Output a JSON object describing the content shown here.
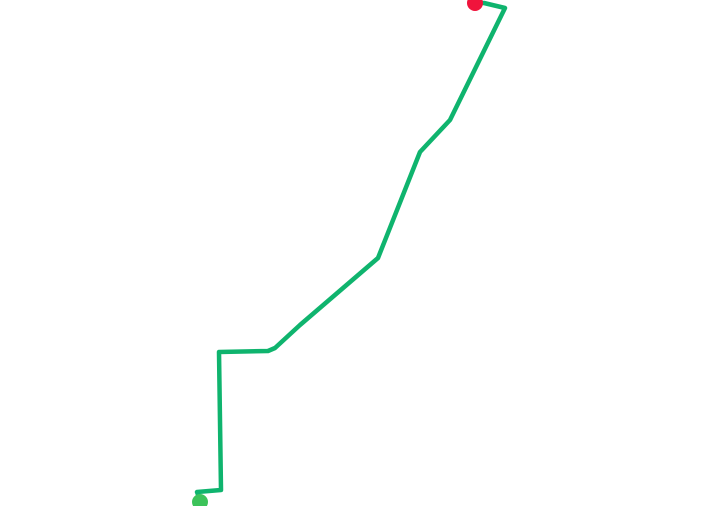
{
  "map": {
    "route": {
      "color": "#0fb46e"
    },
    "start_marker": {
      "color": "#3cc35a"
    },
    "end_marker": {
      "color": "#f0143c"
    }
  }
}
